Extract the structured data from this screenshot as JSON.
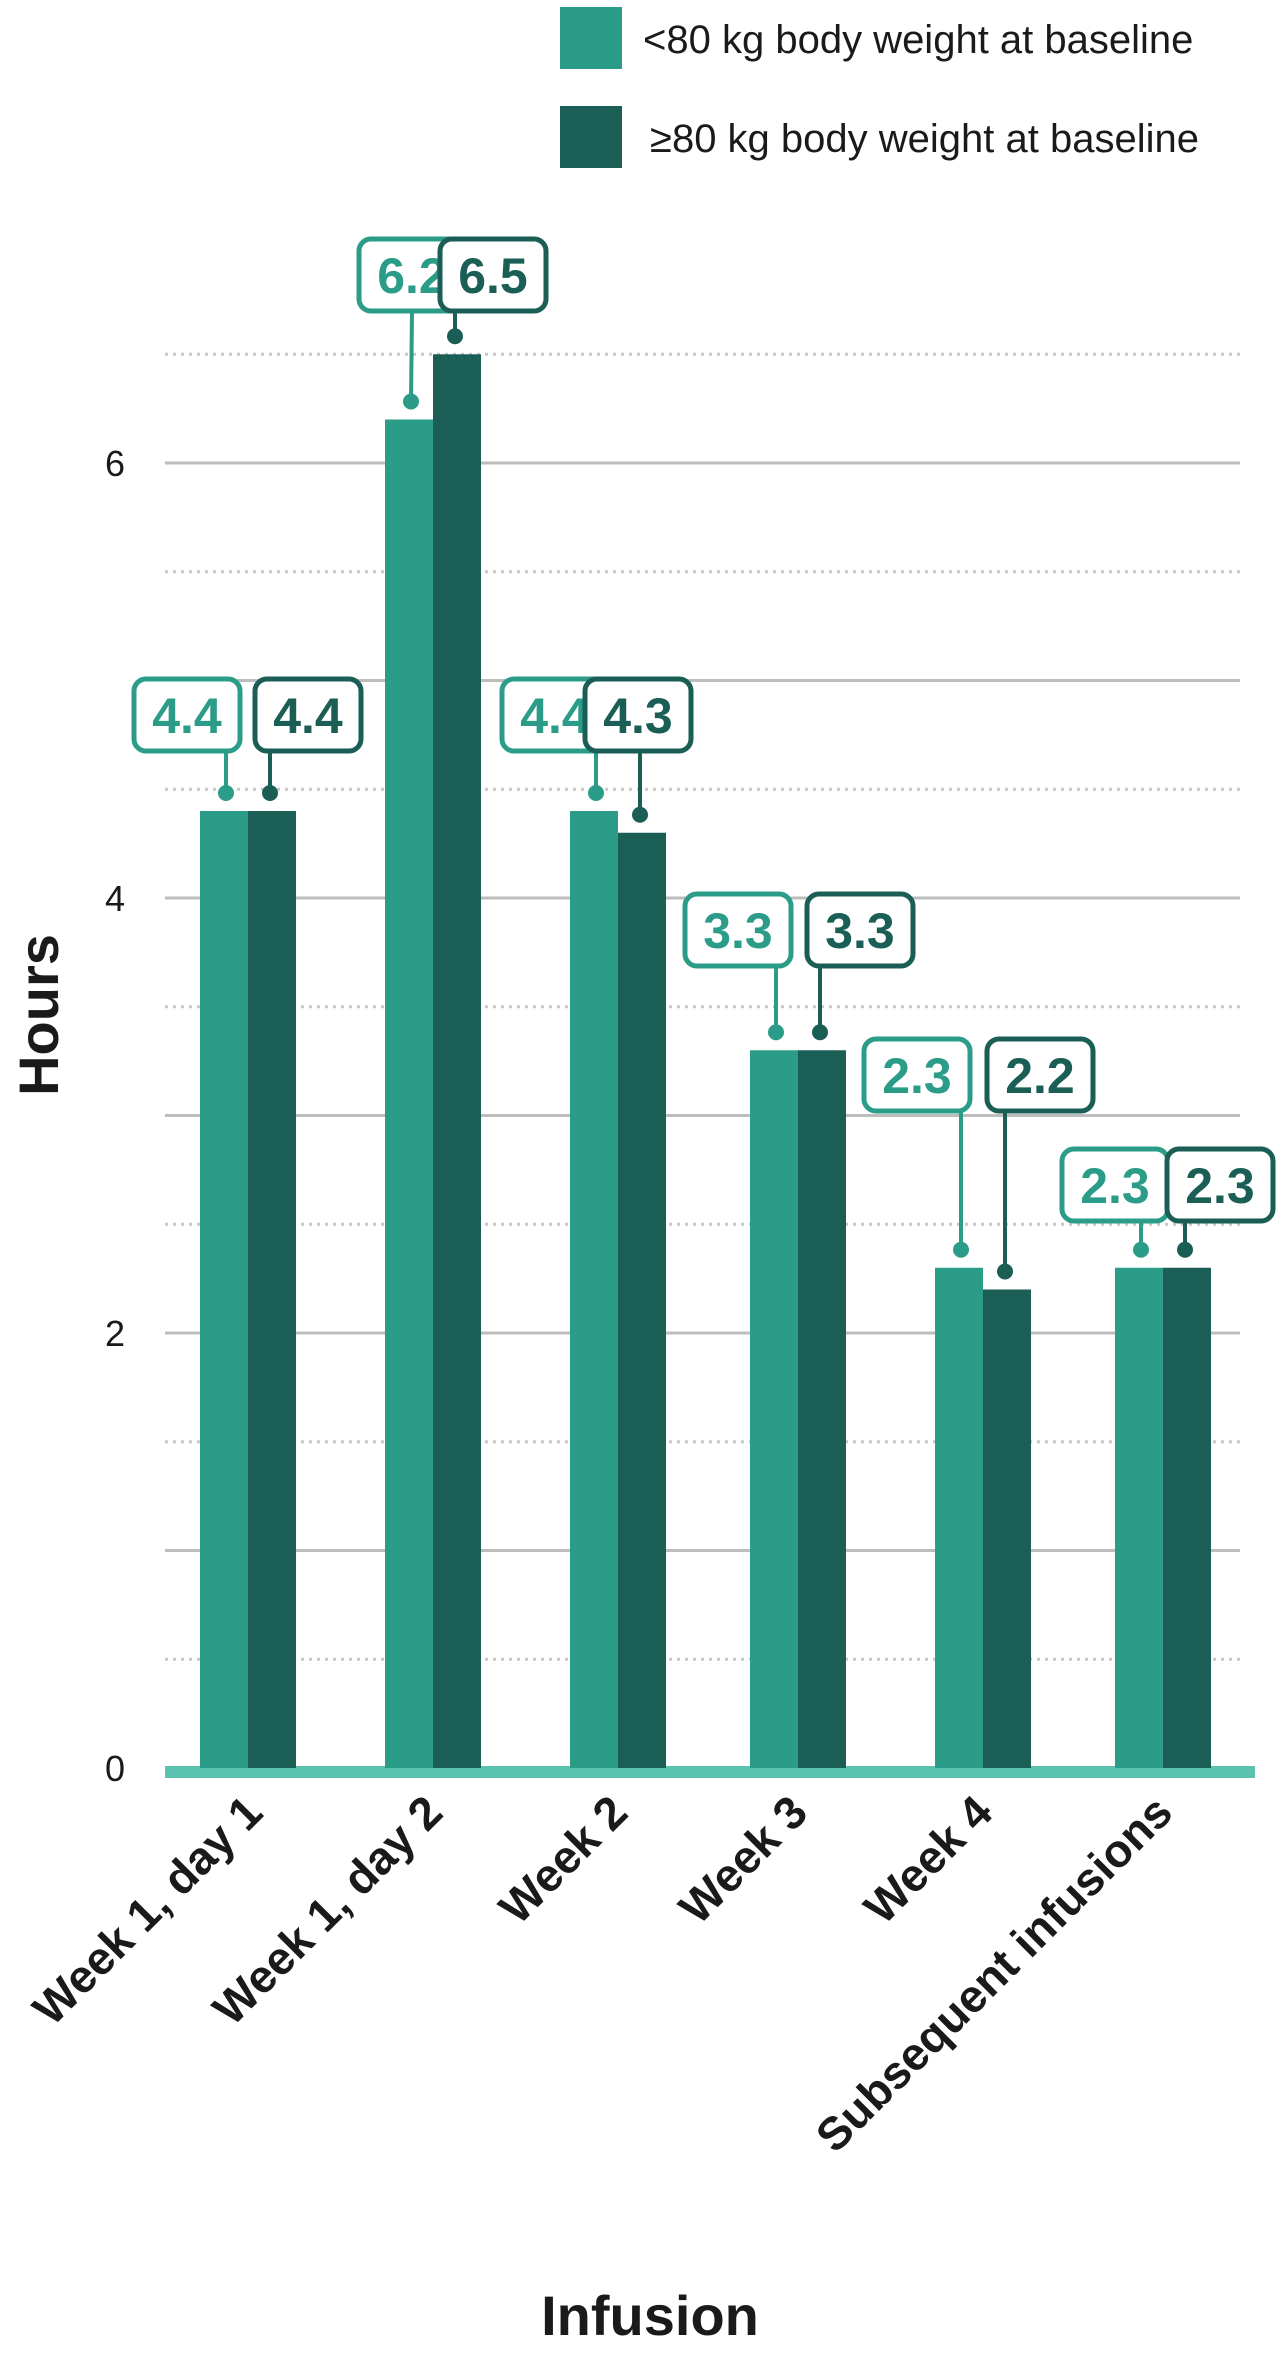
{
  "chart_data": {
    "type": "bar",
    "title": "",
    "xlabel": "Infusion",
    "ylabel": "Hours",
    "ylim": [
      0,
      6.5
    ],
    "yticks": [
      0,
      2,
      4,
      6
    ],
    "grid": true,
    "legend_position": "top-right",
    "categories": [
      "Week 1, day 1",
      "Week 1, day 2",
      "Week 2",
      "Week 3",
      "Week 4",
      "Subsequent infusions"
    ],
    "series": [
      {
        "name": "<80 kg body weight at baseline",
        "color": "#2a9c88",
        "values": [
          4.4,
          6.2,
          4.4,
          3.3,
          2.3,
          2.3
        ],
        "labels": [
          "4.4",
          "6.2",
          "4.4",
          "3.3",
          "2.3",
          "2.3"
        ]
      },
      {
        "name": "≥80 kg body weight at baseline",
        "color": "#1a5e55",
        "values": [
          4.4,
          6.5,
          4.3,
          3.3,
          2.2,
          2.3
        ],
        "labels": [
          "4.4",
          "6.5",
          "4.3",
          "3.3",
          "2.2",
          "2.3"
        ]
      }
    ],
    "tick_labels": [
      "0",
      "2",
      "4",
      "6"
    ],
    "baseline_color": "#5cc2b0"
  }
}
